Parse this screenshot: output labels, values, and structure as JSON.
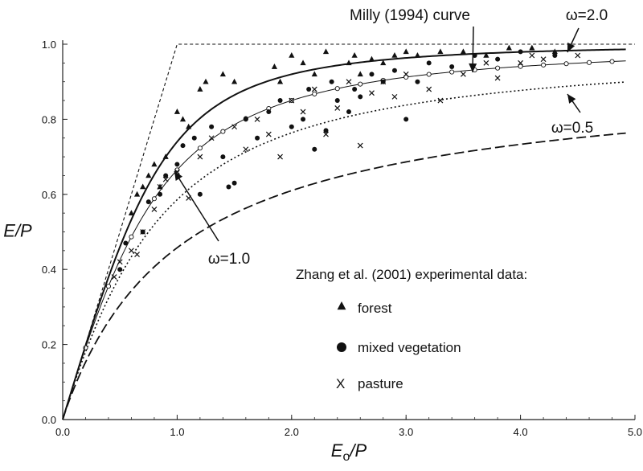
{
  "chart_data": {
    "type": "scatter",
    "xlabel": "Eo/P",
    "ylabel": "E/P",
    "xlim": [
      0,
      5
    ],
    "ylim": [
      0,
      1
    ],
    "x_ticks": [
      "0.0",
      "1.0",
      "2.0",
      "3.0",
      "4.0",
      "5.0"
    ],
    "y_ticks": [
      "0.0",
      "0.2",
      "0.4",
      "0.6",
      "0.8",
      "1.0"
    ],
    "grid": false,
    "legend_position": "bottom-right",
    "legend_title": "Zhang et al. (2001) experimental data:",
    "series": [
      {
        "name": "forest",
        "marker": "triangle",
        "points": [
          [
            0.6,
            0.55
          ],
          [
            0.65,
            0.6
          ],
          [
            0.7,
            0.62
          ],
          [
            0.75,
            0.65
          ],
          [
            0.8,
            0.68
          ],
          [
            0.85,
            0.62
          ],
          [
            0.9,
            0.7
          ],
          [
            1.0,
            0.82
          ],
          [
            1.05,
            0.8
          ],
          [
            1.1,
            0.78
          ],
          [
            1.2,
            0.88
          ],
          [
            1.25,
            0.9
          ],
          [
            1.4,
            0.92
          ],
          [
            1.5,
            0.9
          ],
          [
            1.85,
            0.94
          ],
          [
            1.9,
            0.9
          ],
          [
            2.0,
            0.97
          ],
          [
            2.1,
            0.95
          ],
          [
            2.2,
            0.92
          ],
          [
            2.3,
            0.98
          ],
          [
            2.5,
            0.95
          ],
          [
            2.55,
            0.97
          ],
          [
            2.6,
            0.92
          ],
          [
            2.7,
            0.96
          ],
          [
            2.8,
            0.95
          ],
          [
            2.9,
            0.97
          ],
          [
            3.0,
            0.98
          ],
          [
            3.1,
            0.97
          ],
          [
            3.3,
            0.98
          ],
          [
            3.5,
            0.98
          ],
          [
            3.7,
            0.97
          ],
          [
            3.9,
            0.99
          ],
          [
            4.1,
            0.99
          ],
          [
            4.3,
            0.98
          ]
        ]
      },
      {
        "name": "mixed vegetation",
        "marker": "circle",
        "points": [
          [
            0.5,
            0.4
          ],
          [
            0.55,
            0.47
          ],
          [
            0.7,
            0.5
          ],
          [
            0.75,
            0.58
          ],
          [
            0.85,
            0.6
          ],
          [
            0.9,
            0.65
          ],
          [
            1.0,
            0.68
          ],
          [
            1.05,
            0.73
          ],
          [
            1.15,
            0.75
          ],
          [
            1.2,
            0.6
          ],
          [
            1.3,
            0.78
          ],
          [
            1.4,
            0.7
          ],
          [
            1.45,
            0.62
          ],
          [
            1.5,
            0.63
          ],
          [
            1.6,
            0.8
          ],
          [
            1.7,
            0.75
          ],
          [
            1.8,
            0.82
          ],
          [
            1.9,
            0.85
          ],
          [
            2.0,
            0.78
          ],
          [
            2.1,
            0.8
          ],
          [
            2.15,
            0.88
          ],
          [
            2.2,
            0.72
          ],
          [
            2.3,
            0.77
          ],
          [
            2.35,
            0.9
          ],
          [
            2.4,
            0.85
          ],
          [
            2.5,
            0.82
          ],
          [
            2.55,
            0.88
          ],
          [
            2.6,
            0.86
          ],
          [
            2.7,
            0.92
          ],
          [
            2.8,
            0.9
          ],
          [
            2.9,
            0.93
          ],
          [
            3.0,
            0.8
          ],
          [
            3.1,
            0.9
          ],
          [
            3.2,
            0.95
          ],
          [
            3.4,
            0.94
          ],
          [
            3.6,
            0.97
          ],
          [
            3.8,
            0.96
          ],
          [
            4.0,
            0.98
          ],
          [
            4.3,
            0.97
          ]
        ]
      },
      {
        "name": "pasture",
        "marker": "x",
        "points": [
          [
            0.45,
            0.38
          ],
          [
            0.5,
            0.42
          ],
          [
            0.6,
            0.45
          ],
          [
            0.65,
            0.44
          ],
          [
            0.7,
            0.5
          ],
          [
            0.8,
            0.56
          ],
          [
            0.85,
            0.62
          ],
          [
            0.9,
            0.64
          ],
          [
            1.0,
            0.66
          ],
          [
            1.1,
            0.59
          ],
          [
            1.2,
            0.7
          ],
          [
            1.3,
            0.75
          ],
          [
            1.5,
            0.78
          ],
          [
            1.6,
            0.72
          ],
          [
            1.7,
            0.8
          ],
          [
            1.8,
            0.76
          ],
          [
            1.9,
            0.7
          ],
          [
            2.0,
            0.85
          ],
          [
            2.1,
            0.82
          ],
          [
            2.2,
            0.88
          ],
          [
            2.3,
            0.76
          ],
          [
            2.4,
            0.83
          ],
          [
            2.5,
            0.9
          ],
          [
            2.6,
            0.73
          ],
          [
            2.7,
            0.87
          ],
          [
            2.8,
            0.9
          ],
          [
            2.9,
            0.86
          ],
          [
            3.0,
            0.92
          ],
          [
            3.2,
            0.88
          ],
          [
            3.3,
            0.85
          ],
          [
            3.5,
            0.92
          ],
          [
            3.7,
            0.95
          ],
          [
            3.8,
            0.91
          ],
          [
            4.0,
            0.95
          ],
          [
            4.1,
            0.97
          ],
          [
            4.2,
            0.96
          ],
          [
            4.5,
            0.97
          ]
        ]
      }
    ],
    "curves": [
      {
        "label": "ω=2.0",
        "w": 2.0,
        "style": "solid"
      },
      {
        "label": "ω=1.0",
        "w": 1.0,
        "style": "dotted"
      },
      {
        "label": "ω=0.5",
        "w": 0.5,
        "style": "dashed"
      },
      {
        "label": "Milly (1994) curve",
        "w": 1.6,
        "style": "circles"
      },
      {
        "label": "",
        "style": "limit",
        "points": [
          [
            0,
            0
          ],
          [
            1,
            1
          ],
          [
            5,
            1
          ]
        ]
      }
    ],
    "annotations": {
      "milly": "Milly (1994) curve",
      "w2": "ω=2.0",
      "w1": "ω=1.0",
      "w05": "ω=0.5"
    },
    "legend": {
      "forest": "forest",
      "mixed": "mixed vegetation",
      "pasture": "pasture",
      "x_symbol": "X"
    }
  }
}
